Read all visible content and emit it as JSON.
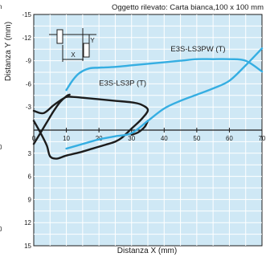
{
  "chart_data": {
    "type": "line",
    "title": "Oggetto rilevato: Carta bianca,100 x 100 mm",
    "xlabel": "Distanza X (mm)",
    "ylabel": "Distanza Y (mm)",
    "xlim": [
      0,
      70
    ],
    "ylim": [
      -15,
      15
    ],
    "x_ticks": [
      0,
      10,
      20,
      30,
      40,
      50,
      60,
      70
    ],
    "y_ticks_upper": [
      -15,
      -12,
      -9,
      -6,
      -3
    ],
    "y_ticks_lower": [
      3,
      6,
      9,
      12,
      15
    ],
    "grid": true,
    "colors": {
      "plot_background": "#cfe8f5",
      "grid": "#ffffff",
      "curve_pw": "#35aee2",
      "curve_p": "#1c1c1c"
    },
    "left_edge_fragments": [
      "n",
      "0",
      "0"
    ],
    "diagram_icon": {
      "x_label": "X",
      "y_label": "Y"
    },
    "series": [
      {
        "name": "E3S-LS3PW (T)",
        "color": "#35aee2",
        "points": [
          [
            10,
            -5.2
          ],
          [
            12,
            -6.5
          ],
          [
            14,
            -7.4
          ],
          [
            17,
            -8.0
          ],
          [
            20,
            -8.1
          ],
          [
            25,
            -8.2
          ],
          [
            30,
            -8.4
          ],
          [
            35,
            -8.6
          ],
          [
            40,
            -8.8
          ],
          [
            45,
            -9.0
          ],
          [
            50,
            -9.2
          ],
          [
            55,
            -9.2
          ],
          [
            60,
            -9.2
          ],
          [
            65,
            -9.0
          ],
          [
            70,
            -7.6
          ]
        ]
      },
      {
        "name": "E3S-LS3P (T)",
        "color": "#1c1c1c",
        "points": [
          [
            0,
            -2.5
          ],
          [
            3,
            -2.2
          ],
          [
            6,
            -3.2
          ],
          [
            8,
            -3.8
          ],
          [
            10,
            -4.3
          ],
          [
            12,
            -4.3
          ],
          [
            15,
            -4.2
          ],
          [
            20,
            -4.0
          ],
          [
            25,
            -3.8
          ],
          [
            30,
            -3.6
          ],
          [
            33,
            -3.3
          ],
          [
            35,
            -2.6
          ],
          [
            33,
            -1.4
          ],
          [
            30,
            -0.2
          ],
          [
            27,
            1.0
          ],
          [
            25,
            1.5
          ],
          [
            22,
            1.9
          ],
          [
            18,
            2.4
          ],
          [
            14,
            2.9
          ],
          [
            10,
            3.3
          ],
          [
            7,
            3.7
          ],
          [
            5,
            3.4
          ],
          [
            4,
            2.0
          ],
          [
            2,
            0.3
          ],
          [
            0,
            -1.2
          ]
        ]
      },
      {
        "name": "",
        "color": "#1c1c1c",
        "points": [
          [
            0,
            1.8
          ],
          [
            2,
            0.4
          ],
          [
            4,
            -1.0
          ],
          [
            6,
            -2.4
          ],
          [
            8,
            -3.6
          ],
          [
            10,
            -4.4
          ],
          [
            11,
            -4.6
          ]
        ]
      },
      {
        "name": "",
        "color": "#1c1c1c",
        "points": [
          [
            30,
            0.6
          ],
          [
            32,
            0.3
          ],
          [
            34,
            -0.4
          ],
          [
            35,
            -1.2
          ]
        ]
      },
      {
        "name": "",
        "color": "#35aee2",
        "points": [
          [
            10,
            2.4
          ],
          [
            15,
            1.8
          ],
          [
            20,
            1.2
          ],
          [
            25,
            0.8
          ],
          [
            30,
            0.4
          ],
          [
            35,
            -1.2
          ],
          [
            40,
            -2.8
          ],
          [
            45,
            -3.8
          ],
          [
            50,
            -4.6
          ],
          [
            55,
            -5.4
          ],
          [
            60,
            -6.4
          ],
          [
            65,
            -8.4
          ],
          [
            70,
            -10.6
          ]
        ]
      }
    ],
    "series_labels": [
      {
        "text": "E3S-LS3PW (T)",
        "anchor_x": 42,
        "anchor_y": -10.2
      },
      {
        "text": "E3S-LS3P (T)",
        "anchor_x": 20,
        "anchor_y": -5.8
      }
    ]
  }
}
